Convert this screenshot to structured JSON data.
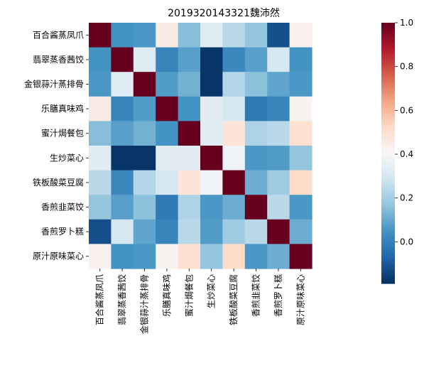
{
  "chart_data": {
    "type": "heatmap",
    "title": "2019320143321魏沛然",
    "row_labels": [
      "百合酱蒸凤爪",
      "翡翠蒸香茜饺",
      "金银蒜汁蒸排骨",
      "乐膳真味鸡",
      "蜜汁焗餐包",
      "生炒菜心",
      "铁板酸菜豆腐",
      "香煎韭菜饺",
      "香煎罗卜糕",
      "原汁原味菜心"
    ],
    "col_labels": [
      "百合酱蒸凤爪",
      "翡翠蒸香茜饺",
      "金银蒜汁蒸排骨",
      "乐膳真味鸡",
      "蜜汁焗餐包",
      "生炒菜心",
      "铁板酸菜豆腐",
      "香煎韭菜饺",
      "香煎罗卜糕",
      "原汁原味菜心"
    ],
    "values": [
      [
        1.0,
        0.05,
        0.06,
        0.45,
        0.15,
        0.33,
        0.24,
        0.17,
        -0.12,
        0.43
      ],
      [
        0.05,
        1.0,
        0.33,
        0.01,
        0.08,
        -0.18,
        0.02,
        0.08,
        0.3,
        0.05
      ],
      [
        0.06,
        0.33,
        1.0,
        0.07,
        0.12,
        -0.18,
        0.23,
        0.16,
        0.09,
        0.06
      ],
      [
        0.45,
        0.01,
        0.07,
        1.0,
        0.05,
        0.34,
        0.3,
        -0.02,
        0.01,
        0.42
      ],
      [
        0.15,
        0.08,
        0.12,
        0.05,
        1.0,
        0.34,
        0.48,
        0.22,
        0.24,
        0.5
      ],
      [
        0.33,
        -0.18,
        -0.18,
        0.34,
        0.34,
        1.0,
        0.38,
        0.06,
        0.07,
        0.17
      ],
      [
        0.24,
        0.02,
        0.23,
        0.3,
        0.48,
        0.38,
        1.0,
        0.11,
        0.19,
        0.52
      ],
      [
        0.17,
        0.08,
        0.16,
        -0.02,
        0.22,
        0.06,
        0.11,
        1.0,
        0.24,
        0.06
      ],
      [
        -0.12,
        0.3,
        0.09,
        0.01,
        0.24,
        0.07,
        0.19,
        0.24,
        1.0,
        0.11
      ],
      [
        0.43,
        0.05,
        0.06,
        0.42,
        0.5,
        0.17,
        0.52,
        0.06,
        0.11,
        1.0
      ]
    ],
    "colormap": "RdBu_r",
    "vmin": -0.19,
    "vmax": 1.0,
    "colorbar_ticks": [
      "0.0",
      "0.2",
      "0.4",
      "0.6",
      "0.8",
      "1.0"
    ]
  }
}
